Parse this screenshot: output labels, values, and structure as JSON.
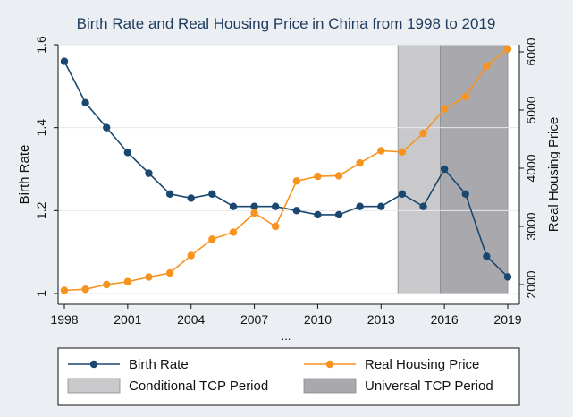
{
  "chart_data": {
    "type": "line",
    "title": "Birth Rate and Real Housing Price in China from 1998 to 2019",
    "xlabel": "...",
    "ylabel_left": "Birth Rate",
    "ylabel_right": "Real Housing Price",
    "x": [
      1998,
      1999,
      2000,
      2001,
      2002,
      2003,
      2004,
      2005,
      2006,
      2007,
      2008,
      2009,
      2010,
      2011,
      2012,
      2013,
      2014,
      2015,
      2016,
      2017,
      2018,
      2019
    ],
    "xticks": [
      "1998",
      "2001",
      "2004",
      "2007",
      "2010",
      "2013",
      "2016",
      "2019"
    ],
    "xlim": [
      1998,
      2019
    ],
    "y_left_ticks": [
      "1",
      "1.2",
      "1.4",
      "1.6"
    ],
    "y_left_lim": [
      1.0,
      1.6
    ],
    "y_right_ticks": [
      "2000",
      "3000",
      "4000",
      "5000",
      "6000"
    ],
    "y_right_lim": [
      1900,
      6000
    ],
    "series": [
      {
        "name": "Birth Rate",
        "axis": "left",
        "color": "#1a476f",
        "values": [
          1.56,
          1.46,
          1.4,
          1.34,
          1.29,
          1.24,
          1.23,
          1.24,
          1.21,
          1.21,
          1.21,
          1.2,
          1.19,
          1.19,
          1.21,
          1.21,
          1.24,
          1.21,
          1.3,
          1.24,
          1.09,
          1.04
        ]
      },
      {
        "name": "Real Housing Price",
        "axis": "right",
        "color": "#f7931e",
        "values": [
          1900,
          1920,
          2000,
          2050,
          2130,
          2200,
          2500,
          2780,
          2900,
          3230,
          3000,
          3780,
          3860,
          3870,
          4090,
          4300,
          4280,
          4600,
          5020,
          5230,
          5760,
          6050
        ]
      }
    ],
    "shaded_periods": [
      {
        "name": "Conditional TCP Period",
        "x_start": 2013.8,
        "x_end": 2015.8,
        "color": "#c9c9cc"
      },
      {
        "name": "Universal TCP Period",
        "x_start": 2015.8,
        "x_end": 2019.0,
        "color": "#a9a9ad"
      }
    ],
    "legend": {
      "placement": "bottom",
      "entries": [
        "Birth Rate",
        "Real Housing Price",
        "Conditional TCP Period",
        "Universal TCP Period"
      ]
    },
    "grid": true
  }
}
